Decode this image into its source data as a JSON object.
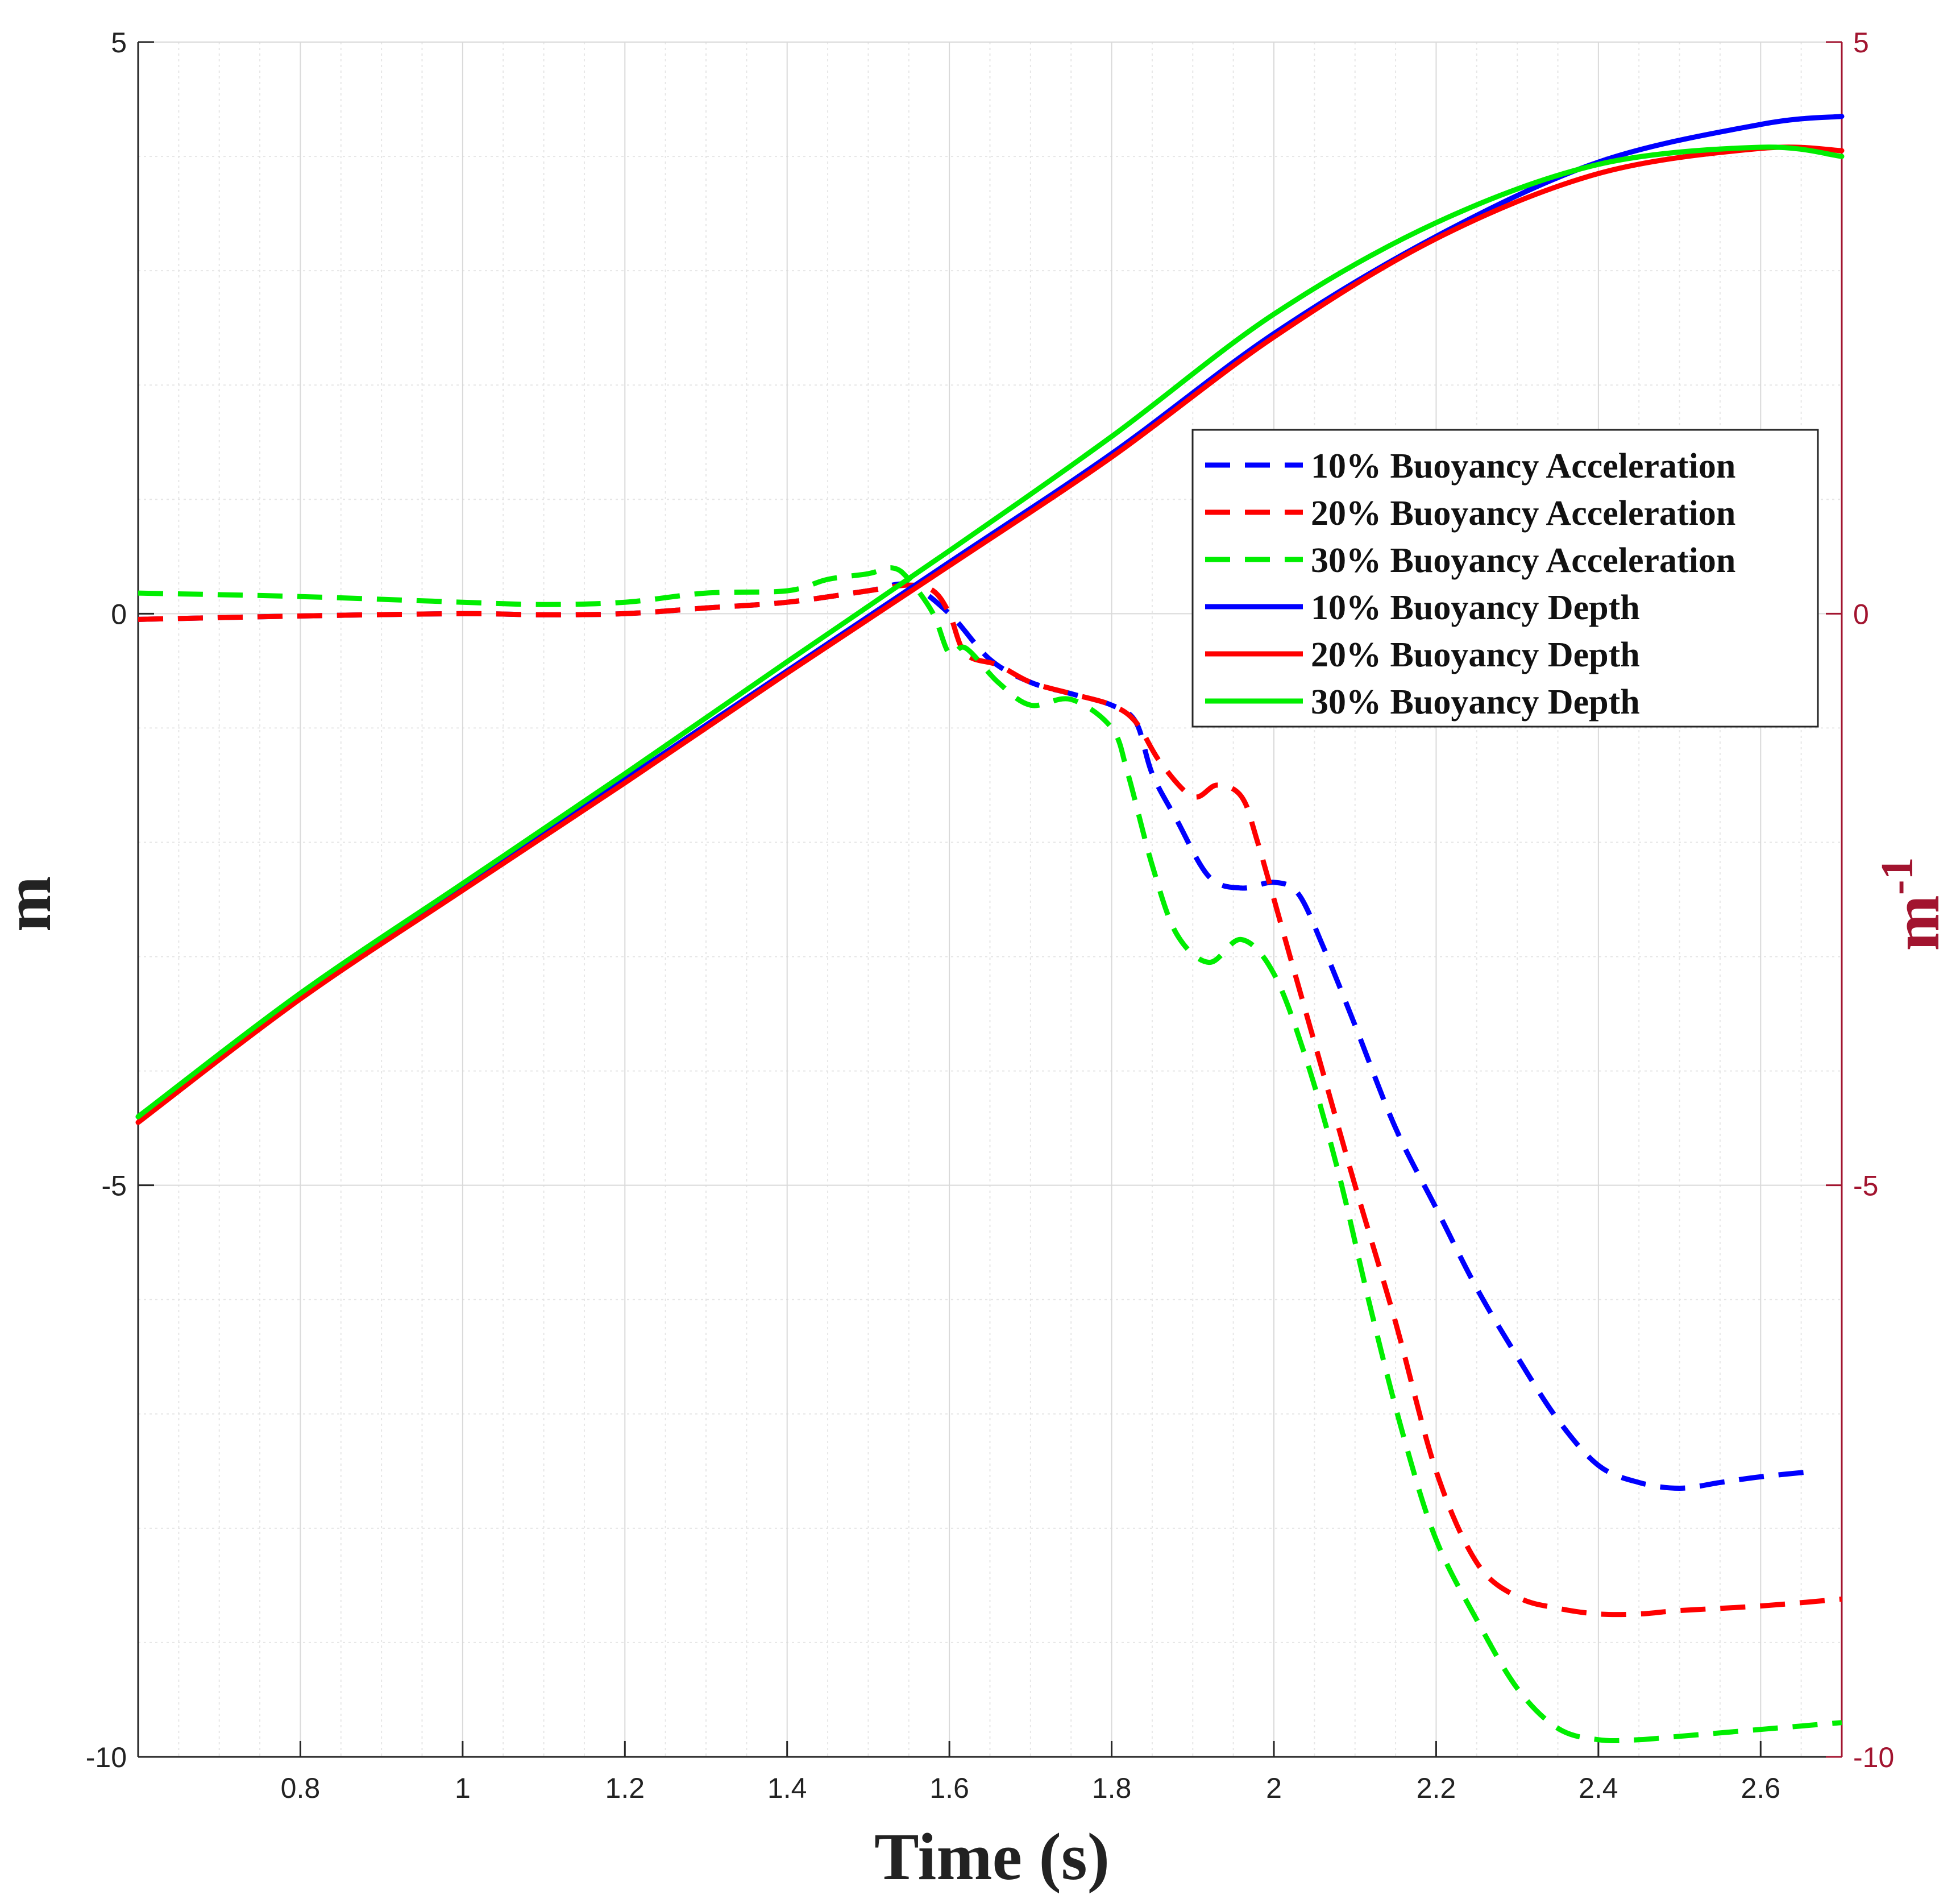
{
  "chart_data": {
    "type": "line",
    "xlabel": "Time (s)",
    "ylabel_left": "m",
    "ylabel_right": "m",
    "ylabel_right_exponent": "-1",
    "xlim": [
      0.6,
      2.7
    ],
    "ylim_left": [
      -10,
      5
    ],
    "ylim_right": [
      -10,
      5
    ],
    "x_ticks": [
      0.8,
      1,
      1.2,
      1.4,
      1.6,
      1.8,
      2,
      2.2,
      2.4,
      2.6
    ],
    "x_tick_labels": [
      "0.8",
      "1",
      "1.2",
      "1.4",
      "1.6",
      "1.8",
      "2",
      "2.2",
      "2.4",
      "2.6"
    ],
    "y_ticks": [
      -10,
      -5,
      0,
      5
    ],
    "y_tick_labels": [
      "-10",
      "-5",
      "0",
      "5"
    ],
    "grid": true,
    "minor_grid": true,
    "legend_position": "center-right",
    "series": [
      {
        "name": "10% Buoyancy Acceleration",
        "color": "#0000ff",
        "style": "dashed",
        "axis": "right",
        "x": [
          0.6,
          0.8,
          1.0,
          1.1,
          1.2,
          1.3,
          1.4,
          1.5,
          1.55,
          1.6,
          1.65,
          1.7,
          1.75,
          1.8,
          1.83,
          1.85,
          1.88,
          1.92,
          1.96,
          2.0,
          2.03,
          2.06,
          2.1,
          2.15,
          2.2,
          2.25,
          2.3,
          2.35,
          2.4,
          2.45,
          2.5,
          2.55,
          2.6,
          2.67
        ],
        "y": [
          -0.05,
          -0.02,
          0.0,
          -0.01,
          0.0,
          0.05,
          0.1,
          0.2,
          0.25,
          0.0,
          -0.4,
          -0.6,
          -0.7,
          -0.8,
          -0.95,
          -1.4,
          -1.8,
          -2.3,
          -2.4,
          -2.35,
          -2.45,
          -2.9,
          -3.6,
          -4.5,
          -5.2,
          -5.9,
          -6.5,
          -7.05,
          -7.45,
          -7.6,
          -7.65,
          -7.6,
          -7.55,
          -7.5
        ]
      },
      {
        "name": "20% Buoyancy Acceleration",
        "color": "#ff0000",
        "style": "dashed",
        "axis": "right",
        "x": [
          0.6,
          0.8,
          1.0,
          1.1,
          1.2,
          1.3,
          1.4,
          1.5,
          1.55,
          1.58,
          1.6,
          1.62,
          1.66,
          1.7,
          1.75,
          1.8,
          1.83,
          1.86,
          1.9,
          1.93,
          1.96,
          1.98,
          2.02,
          2.06,
          2.1,
          2.15,
          2.2,
          2.25,
          2.3,
          2.35,
          2.4,
          2.45,
          2.5,
          2.6,
          2.7
        ],
        "y": [
          -0.05,
          -0.02,
          0.0,
          -0.01,
          0.0,
          0.05,
          0.1,
          0.2,
          0.25,
          0.2,
          0.0,
          -0.35,
          -0.45,
          -0.6,
          -0.7,
          -0.8,
          -0.95,
          -1.3,
          -1.6,
          -1.5,
          -1.6,
          -2.0,
          -3.0,
          -4.0,
          -5.0,
          -6.2,
          -7.5,
          -8.3,
          -8.6,
          -8.7,
          -8.75,
          -8.75,
          -8.72,
          -8.68,
          -8.62
        ]
      },
      {
        "name": "30% Buoyancy Acceleration",
        "color": "#00ee00",
        "style": "dashed",
        "axis": "right",
        "x": [
          0.6,
          0.8,
          1.0,
          1.1,
          1.2,
          1.3,
          1.4,
          1.45,
          1.5,
          1.53,
          1.55,
          1.58,
          1.6,
          1.62,
          1.66,
          1.7,
          1.75,
          1.8,
          1.82,
          1.85,
          1.88,
          1.92,
          1.96,
          2.0,
          2.04,
          2.08,
          2.12,
          2.16,
          2.2,
          2.25,
          2.3,
          2.35,
          2.4,
          2.45,
          2.5,
          2.6,
          2.7
        ],
        "y": [
          0.18,
          0.15,
          0.1,
          0.08,
          0.1,
          0.18,
          0.2,
          0.3,
          0.35,
          0.4,
          0.3,
          0.0,
          -0.35,
          -0.3,
          -0.6,
          -0.8,
          -0.75,
          -1.0,
          -1.4,
          -2.2,
          -2.8,
          -3.05,
          -2.85,
          -3.15,
          -3.9,
          -4.9,
          -6.1,
          -7.2,
          -8.1,
          -8.8,
          -9.4,
          -9.75,
          -9.85,
          -9.85,
          -9.82,
          -9.76,
          -9.7
        ]
      },
      {
        "name": "10% Buoyancy Depth",
        "color": "#0000ff",
        "style": "solid",
        "axis": "left",
        "x": [
          0.6,
          0.8,
          1.0,
          1.2,
          1.4,
          1.6,
          1.8,
          2.0,
          2.2,
          2.4,
          2.6,
          2.7
        ],
        "y": [
          -4.4,
          -3.35,
          -2.4,
          -1.45,
          -0.5,
          0.45,
          1.4,
          2.45,
          3.3,
          3.95,
          4.28,
          4.35
        ]
      },
      {
        "name": "20% Buoyancy Depth",
        "color": "#ff0000",
        "style": "solid",
        "axis": "left",
        "x": [
          0.6,
          0.8,
          1.0,
          1.2,
          1.4,
          1.6,
          1.8,
          2.0,
          2.2,
          2.4,
          2.6,
          2.7
        ],
        "y": [
          -4.45,
          -3.37,
          -2.42,
          -1.48,
          -0.52,
          0.42,
          1.37,
          2.42,
          3.28,
          3.85,
          4.07,
          4.05
        ]
      },
      {
        "name": "30% Buoyancy Depth",
        "color": "#00ee00",
        "style": "solid",
        "axis": "left",
        "x": [
          0.6,
          0.8,
          1.0,
          1.2,
          1.4,
          1.6,
          1.8,
          2.0,
          2.2,
          2.4,
          2.6,
          2.7
        ],
        "y": [
          -4.4,
          -3.32,
          -2.36,
          -1.4,
          -0.42,
          0.55,
          1.55,
          2.62,
          3.42,
          3.93,
          4.08,
          4.0
        ]
      }
    ]
  }
}
